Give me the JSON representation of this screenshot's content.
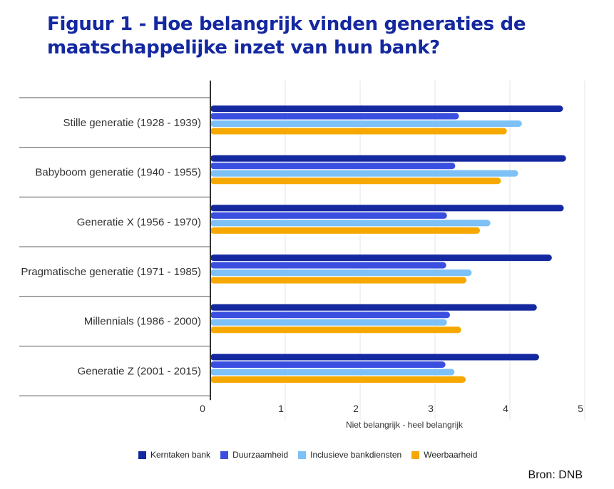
{
  "title": "Figuur 1 - Hoe belangrijk vinden generaties de maatschappelijke inzet van hun bank?",
  "source": "Bron: DNB",
  "chart_data": {
    "type": "bar",
    "orientation": "horizontal",
    "title": "Figuur 1 - Hoe belangrijk vinden generaties de maatschappelijke inzet van hun bank?",
    "xlabel": "Niet belangrijk - heel belangrijk",
    "ylabel": "",
    "xlim": [
      0,
      5
    ],
    "x_ticks": [
      "0",
      "1",
      "2",
      "3",
      "4",
      "5"
    ],
    "grid": true,
    "legend_position": "bottom",
    "categories": [
      "Stille generatie (1928 - 1939)",
      "Babyboom generatie (1940 - 1955)",
      "Generatie X (1956 - 1970)",
      "Pragmatische generatie (1971 - 1985)",
      "Millennials (1986 - 2000)",
      "Generatie Z (2001 - 2015)"
    ],
    "series": [
      {
        "name": "Kerntaken bank",
        "color": "#1428a0",
        "values": [
          4.71,
          4.75,
          4.72,
          4.56,
          4.36,
          4.39
        ]
      },
      {
        "name": "Duurzaamheid",
        "color": "#3a4fe0",
        "values": [
          3.32,
          3.27,
          3.16,
          3.15,
          3.2,
          3.14
        ]
      },
      {
        "name": "Inclusieve bankdiensten",
        "color": "#7dc1f7",
        "values": [
          4.16,
          4.11,
          3.74,
          3.49,
          3.16,
          3.26
        ]
      },
      {
        "name": "Weerbaarheid",
        "color": "#f7a800",
        "values": [
          3.96,
          3.88,
          3.6,
          3.42,
          3.35,
          3.41
        ]
      }
    ]
  }
}
